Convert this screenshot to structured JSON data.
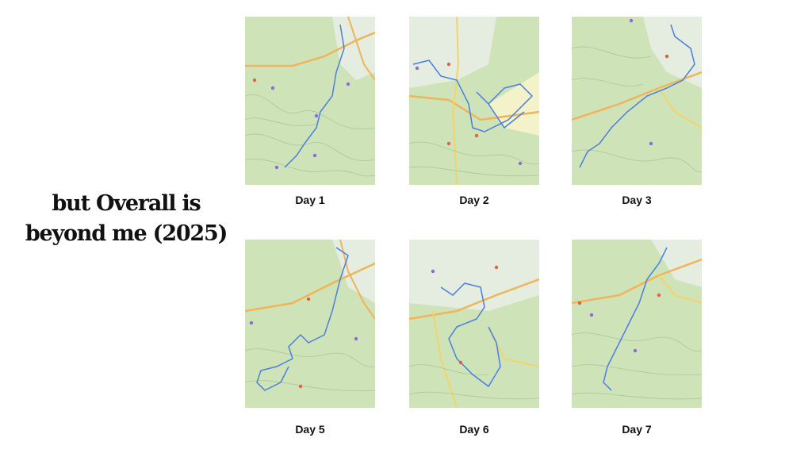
{
  "headline": {
    "line1": "but Overall is",
    "line2": "beyond me  (2025)"
  },
  "days": [
    {
      "label": "Day 1"
    },
    {
      "label": "Day 2"
    },
    {
      "label": "Day 3"
    },
    {
      "label": "Day 5"
    },
    {
      "label": "Day 6"
    },
    {
      "label": "Day 7"
    }
  ],
  "colors": {
    "map_green": "#cfe3b9",
    "map_light": "#e4ede0",
    "road_orange": "#f0b45a",
    "road_yellow": "#f3d36b",
    "route_blue": "#4a7fe0",
    "contour": "#a9c79a",
    "poi_red": "#e0604a",
    "poi_purple": "#8a6bd6"
  }
}
